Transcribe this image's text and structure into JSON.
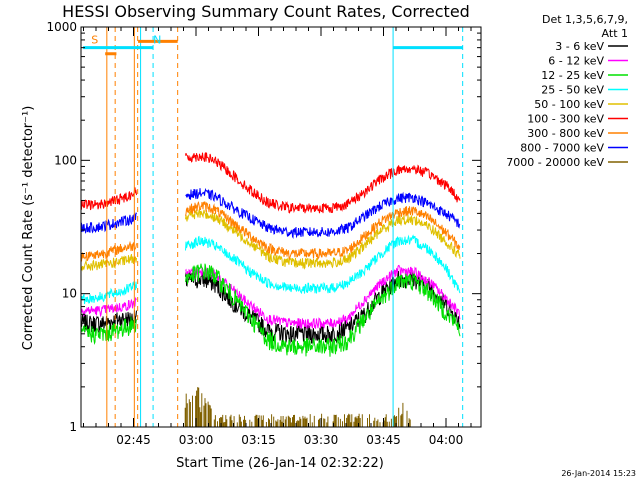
{
  "chart_data": {
    "type": "line",
    "title": "HESSI Observing Summary Count Rates, Corrected",
    "xlabel": "Start Time (26-Jan-14 02:32:22)",
    "ylabel": "Corrected Count Rate (s⁻¹ detector⁻¹)",
    "yscale": "log",
    "xlim_minutes": [
      0,
      96
    ],
    "ylim": [
      1,
      1000
    ],
    "x_ticks": [
      {
        "t": 12.6,
        "label": "02:45"
      },
      {
        "t": 27.6,
        "label": "03:00"
      },
      {
        "t": 42.6,
        "label": "03:15"
      },
      {
        "t": 57.6,
        "label": "03:30"
      },
      {
        "t": 72.6,
        "label": "03:45"
      },
      {
        "t": 87.6,
        "label": "04:00"
      }
    ],
    "y_ticks": [
      {
        "v": 1,
        "label": "1"
      },
      {
        "v": 10,
        "label": "10"
      },
      {
        "v": 100,
        "label": "100"
      },
      {
        "v": 1000,
        "label": "1000"
      }
    ],
    "legend_header": [
      "Det 1,3,5,6,7,9,",
      "Att 1"
    ],
    "legend_placement": "right",
    "timestamp": "26-Jan-2014 15:23",
    "flag_labels": [
      {
        "label": "S",
        "t": 3.3,
        "color": "#ff8000"
      },
      {
        "label": "N",
        "t": 18.3,
        "color": "#00e0ff"
      }
    ],
    "flag_bars": [
      {
        "t0": 0.5,
        "t1": 17.3,
        "level": 700,
        "color": "#00e0ff"
      },
      {
        "t0": 13.7,
        "t1": 23.2,
        "level": 780,
        "color": "#ff8000"
      },
      {
        "t0": 74.9,
        "t1": 91.6,
        "level": 700,
        "color": "#00e0ff"
      },
      {
        "t0": 5.8,
        "t1": 8.5,
        "level": 630,
        "color": "#ff8000"
      }
    ],
    "vlines": [
      {
        "t": 6.2,
        "color": "#ff8000",
        "dashed": false
      },
      {
        "t": 8.2,
        "color": "#ff8000",
        "dashed": true
      },
      {
        "t": 12.8,
        "color": "#ff8000",
        "dashed": false
      },
      {
        "t": 13.6,
        "color": "#ff8000",
        "dashed": true
      },
      {
        "t": 14.3,
        "color": "#00e0ff",
        "dashed": false
      },
      {
        "t": 17.3,
        "color": "#00e0ff",
        "dashed": true
      },
      {
        "t": 23.2,
        "color": "#ff8000",
        "dashed": true
      },
      {
        "t": 74.9,
        "color": "#00e0ff",
        "dashed": false
      },
      {
        "t": 91.6,
        "color": "#00e0ff",
        "dashed": true
      }
    ],
    "gaps_minutes": [
      [
        13.4,
        25.0
      ],
      [
        91.4,
        96.0
      ]
    ],
    "series": [
      {
        "name": "3 - 6 keV",
        "color": "#000000",
        "points": [
          [
            0,
            6
          ],
          [
            5,
            6
          ],
          [
            10,
            6.5
          ],
          [
            13,
            6.5
          ],
          [
            25,
            12.5
          ],
          [
            29,
            13
          ],
          [
            32,
            12
          ],
          [
            36,
            9
          ],
          [
            40,
            7
          ],
          [
            45,
            5.3
          ],
          [
            50,
            5
          ],
          [
            55,
            5
          ],
          [
            60,
            5
          ],
          [
            64,
            5.5
          ],
          [
            68,
            7
          ],
          [
            72,
            10
          ],
          [
            76,
            13
          ],
          [
            80,
            13
          ],
          [
            84,
            11
          ],
          [
            88,
            8
          ],
          [
            91,
            6
          ]
        ]
      },
      {
        "name": "6 - 12 keV",
        "color": "#ff00ff",
        "points": [
          [
            0,
            7.5
          ],
          [
            5,
            7.5
          ],
          [
            10,
            8
          ],
          [
            13,
            8.5
          ],
          [
            25,
            14
          ],
          [
            29,
            15
          ],
          [
            32,
            14
          ],
          [
            36,
            11
          ],
          [
            40,
            8.5
          ],
          [
            45,
            6.5
          ],
          [
            50,
            6
          ],
          [
            55,
            6
          ],
          [
            60,
            6
          ],
          [
            64,
            6.5
          ],
          [
            68,
            9
          ],
          [
            72,
            12
          ],
          [
            76,
            15
          ],
          [
            80,
            14.5
          ],
          [
            84,
            12
          ],
          [
            88,
            9
          ],
          [
            91,
            7
          ]
        ]
      },
      {
        "name": "12 - 25 keV",
        "color": "#00e000",
        "points": [
          [
            0,
            5
          ],
          [
            5,
            5
          ],
          [
            10,
            5.5
          ],
          [
            13,
            6
          ],
          [
            25,
            13
          ],
          [
            29,
            15
          ],
          [
            32,
            14
          ],
          [
            36,
            10
          ],
          [
            40,
            7
          ],
          [
            45,
            4.5
          ],
          [
            50,
            4
          ],
          [
            55,
            4
          ],
          [
            60,
            4
          ],
          [
            64,
            4.5
          ],
          [
            68,
            6.5
          ],
          [
            72,
            9
          ],
          [
            76,
            12.5
          ],
          [
            80,
            12.5
          ],
          [
            84,
            10
          ],
          [
            88,
            7
          ],
          [
            91,
            5.5
          ]
        ]
      },
      {
        "name": "25 - 50 keV",
        "color": "#00ffff",
        "points": [
          [
            0,
            9
          ],
          [
            5,
            9.5
          ],
          [
            10,
            10.5
          ],
          [
            13,
            11.5
          ],
          [
            25,
            23
          ],
          [
            29,
            25
          ],
          [
            32,
            23
          ],
          [
            36,
            19
          ],
          [
            40,
            15
          ],
          [
            45,
            12
          ],
          [
            50,
            11
          ],
          [
            55,
            11
          ],
          [
            60,
            11
          ],
          [
            64,
            12
          ],
          [
            68,
            15
          ],
          [
            72,
            20
          ],
          [
            76,
            25
          ],
          [
            80,
            25
          ],
          [
            84,
            21
          ],
          [
            88,
            15
          ],
          [
            91,
            10
          ]
        ]
      },
      {
        "name": "50 - 100 keV",
        "color": "#e0c000",
        "points": [
          [
            0,
            16
          ],
          [
            5,
            16.5
          ],
          [
            10,
            17.5
          ],
          [
            13,
            18.5
          ],
          [
            25,
            38
          ],
          [
            29,
            40
          ],
          [
            32,
            38
          ],
          [
            36,
            31
          ],
          [
            40,
            25
          ],
          [
            45,
            19
          ],
          [
            50,
            17
          ],
          [
            55,
            17
          ],
          [
            60,
            17
          ],
          [
            64,
            18
          ],
          [
            68,
            23
          ],
          [
            72,
            30
          ],
          [
            76,
            36
          ],
          [
            80,
            36
          ],
          [
            84,
            31
          ],
          [
            88,
            24
          ],
          [
            91,
            19
          ]
        ]
      },
      {
        "name": "100 - 300 keV",
        "color": "#ff0000",
        "points": [
          [
            0,
            46
          ],
          [
            5,
            47
          ],
          [
            10,
            52
          ],
          [
            13,
            58
          ],
          [
            25,
            105
          ],
          [
            29,
            108
          ],
          [
            32,
            100
          ],
          [
            36,
            80
          ],
          [
            40,
            62
          ],
          [
            45,
            48
          ],
          [
            50,
            44
          ],
          [
            55,
            44
          ],
          [
            60,
            44
          ],
          [
            64,
            47
          ],
          [
            68,
            58
          ],
          [
            72,
            73
          ],
          [
            76,
            85
          ],
          [
            80,
            87
          ],
          [
            84,
            78
          ],
          [
            88,
            64
          ],
          [
            91,
            50
          ]
        ]
      },
      {
        "name": "300 - 800 keV",
        "color": "#ff8000",
        "points": [
          [
            0,
            19
          ],
          [
            5,
            20
          ],
          [
            10,
            22
          ],
          [
            13,
            23
          ],
          [
            25,
            42
          ],
          [
            29,
            46
          ],
          [
            32,
            43
          ],
          [
            36,
            35
          ],
          [
            40,
            28
          ],
          [
            45,
            22
          ],
          [
            50,
            20
          ],
          [
            55,
            20
          ],
          [
            60,
            20
          ],
          [
            64,
            21
          ],
          [
            68,
            27
          ],
          [
            72,
            35
          ],
          [
            76,
            41
          ],
          [
            80,
            42
          ],
          [
            84,
            36
          ],
          [
            88,
            28
          ],
          [
            91,
            22
          ]
        ]
      },
      {
        "name": "800 - 7000 keV",
        "color": "#0000ff",
        "points": [
          [
            0,
            31
          ],
          [
            5,
            32
          ],
          [
            10,
            35
          ],
          [
            13,
            37
          ],
          [
            25,
            55
          ],
          [
            29,
            57
          ],
          [
            32,
            54
          ],
          [
            36,
            45
          ],
          [
            40,
            38
          ],
          [
            45,
            31
          ],
          [
            50,
            29
          ],
          [
            55,
            29
          ],
          [
            60,
            29
          ],
          [
            64,
            31
          ],
          [
            68,
            38
          ],
          [
            72,
            46
          ],
          [
            76,
            52
          ],
          [
            80,
            53
          ],
          [
            84,
            46
          ],
          [
            88,
            39
          ],
          [
            91,
            33
          ]
        ]
      },
      {
        "name": "7000 - 20000 keV",
        "color": "#806000",
        "points": [
          [
            25,
            1.6
          ],
          [
            28,
            1.8
          ],
          [
            31,
            1.5
          ],
          [
            33,
            1.2
          ],
          [
            75.5,
            1.2
          ],
          [
            77.5,
            1.5
          ],
          [
            79,
            1.3
          ]
        ]
      }
    ]
  }
}
